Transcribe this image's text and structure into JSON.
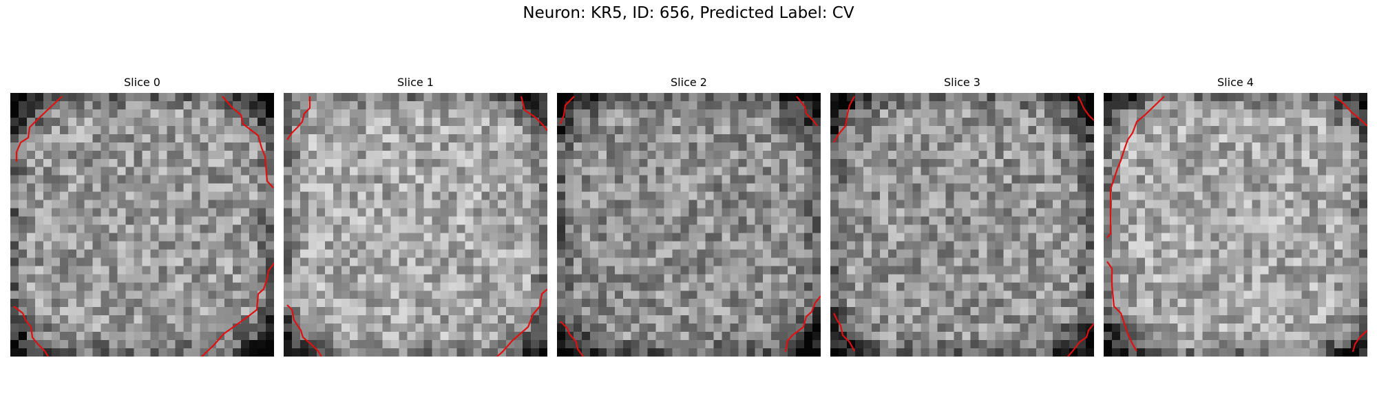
{
  "suptitle": "Neuron: KR5, ID: 656, Predicted Label: CV",
  "contour_color": "#e01010",
  "panels": [
    {
      "title": "Slice 0",
      "mean": 0.6,
      "dark_corners": [
        "tl",
        "tr",
        "bl",
        "br"
      ]
    },
    {
      "title": "Slice 1",
      "mean": 0.66,
      "dark_corners": [
        "tr",
        "bl",
        "br"
      ]
    },
    {
      "title": "Slice 2",
      "mean": 0.56,
      "dark_corners": [
        "tl",
        "tr",
        "bl",
        "br"
      ]
    },
    {
      "title": "Slice 3",
      "mean": 0.58,
      "dark_corners": [
        "tl",
        "tr",
        "bl",
        "br"
      ]
    },
    {
      "title": "Slice 4",
      "mean": 0.66,
      "dark_corners": [
        "tl",
        "tr",
        "bl",
        "br"
      ]
    }
  ]
}
